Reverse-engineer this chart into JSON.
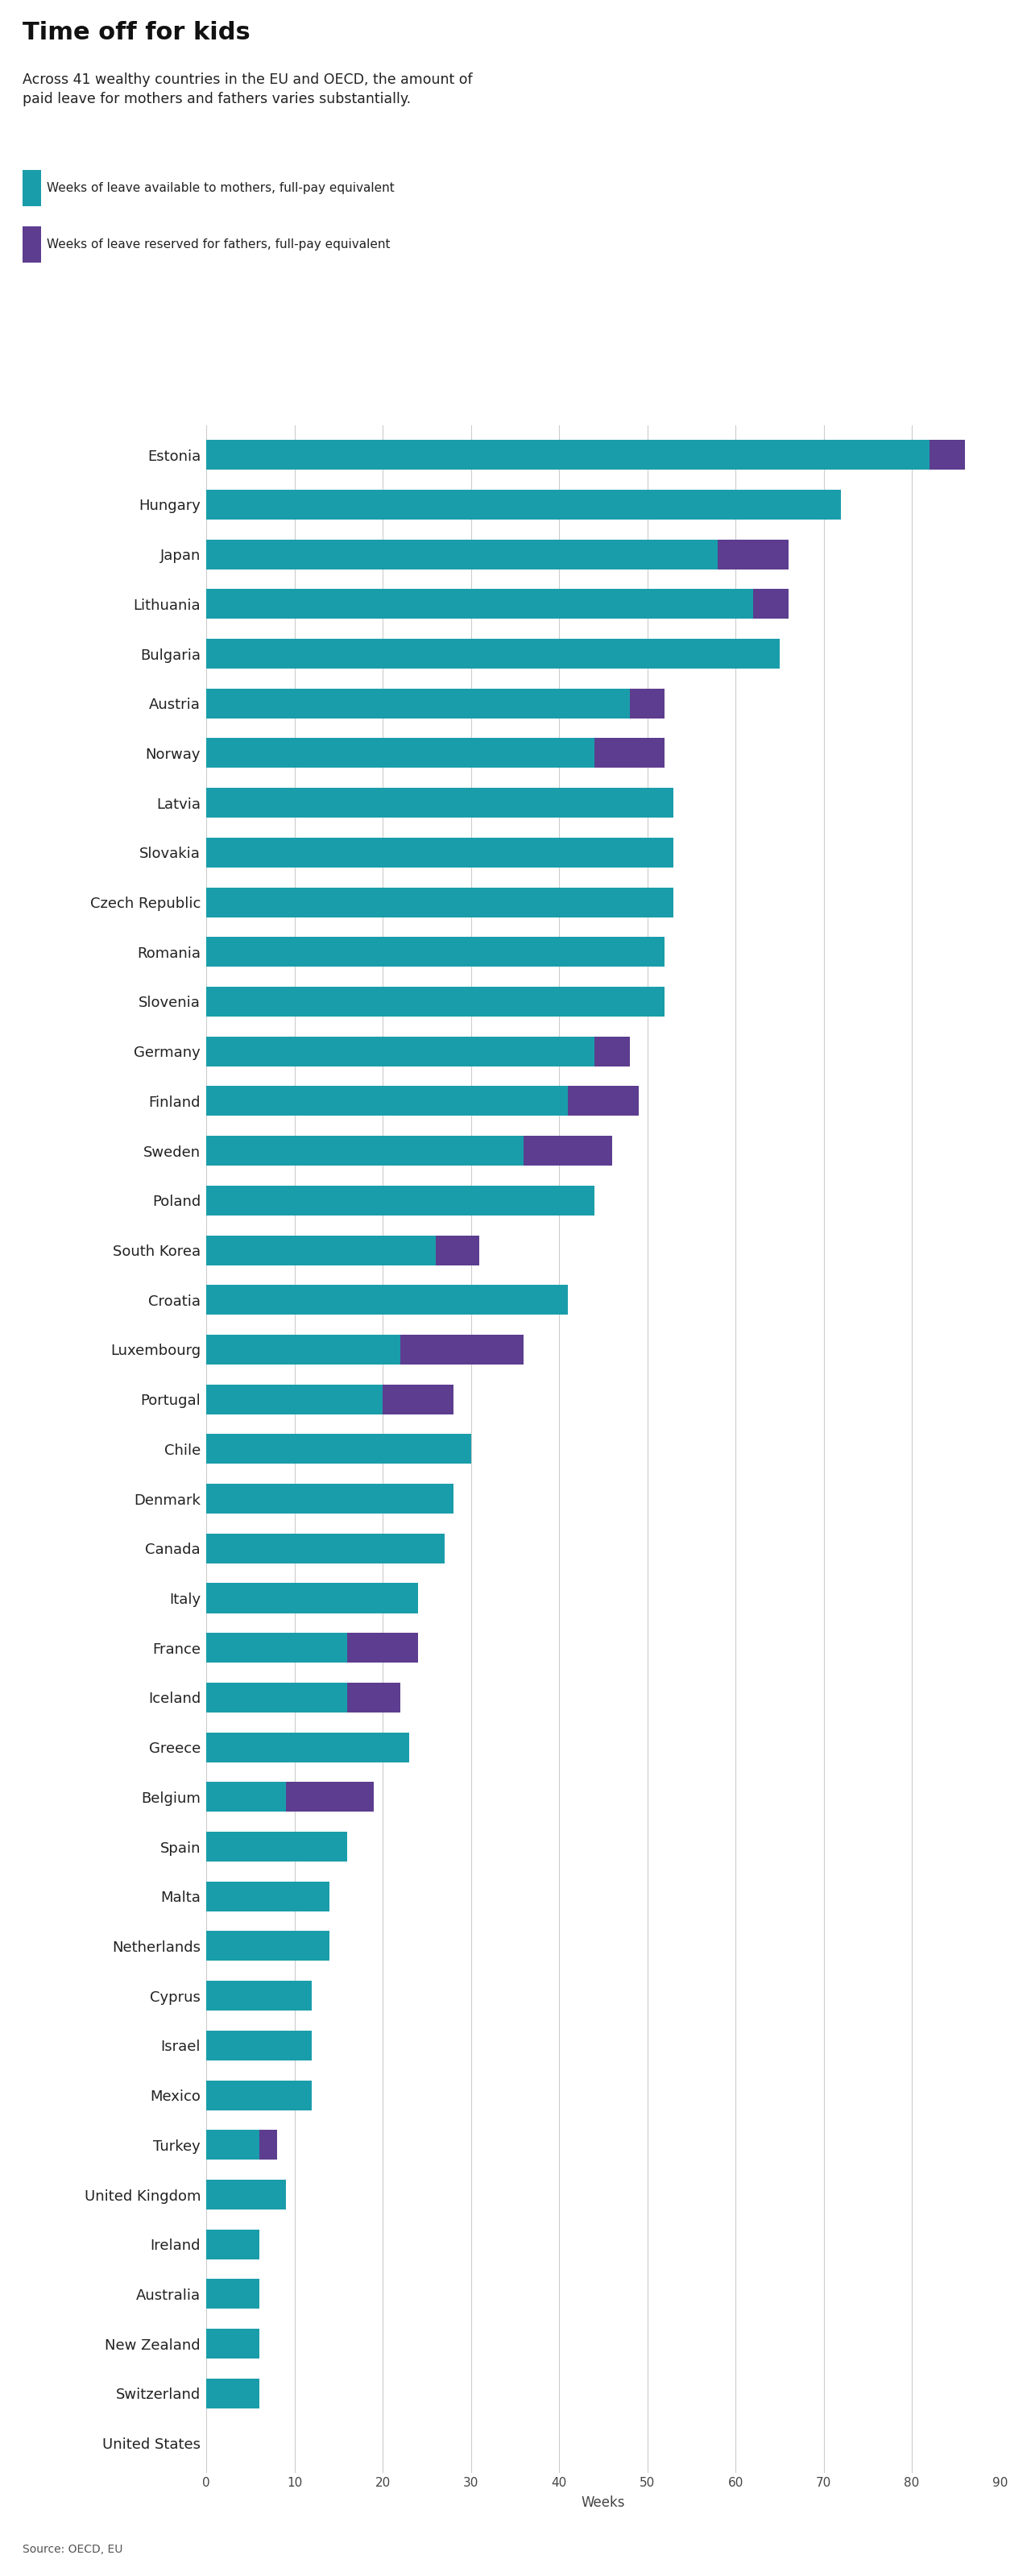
{
  "title": "Time off for kids",
  "subtitle": "Across 41 wealthy countries in the EU and OECD, the amount of\npaid leave for mothers and fathers varies substantially.",
  "legend1": "Weeks of leave available to mothers, full-pay equivalent",
  "legend2": "Weeks of leave reserved for fathers, full-pay equivalent",
  "color_mothers": "#1a9daa",
  "color_fathers": "#5c3d8f",
  "xlabel": "Weeks",
  "source": "Source: OECD, EU",
  "countries": [
    "Estonia",
    "Hungary",
    "Japan",
    "Lithuania",
    "Bulgaria",
    "Austria",
    "Norway",
    "Latvia",
    "Slovakia",
    "Czech Republic",
    "Romania",
    "Slovenia",
    "Germany",
    "Finland",
    "Sweden",
    "Poland",
    "South Korea",
    "Croatia",
    "Luxembourg",
    "Portugal",
    "Chile",
    "Denmark",
    "Canada",
    "Italy",
    "France",
    "Iceland",
    "Greece",
    "Belgium",
    "Spain",
    "Malta",
    "Netherlands",
    "Cyprus",
    "Israel",
    "Mexico",
    "Turkey",
    "United Kingdom",
    "Ireland",
    "Australia",
    "New Zealand",
    "Switzerland",
    "United States"
  ],
  "mothers": [
    82,
    72,
    58,
    62,
    65,
    48,
    44,
    53,
    53,
    53,
    52,
    52,
    44,
    41,
    36,
    44,
    26,
    41,
    22,
    20,
    30,
    28,
    27,
    24,
    16,
    16,
    23,
    9,
    16,
    14,
    14,
    12,
    12,
    12,
    6,
    9,
    6,
    6,
    6,
    6,
    0
  ],
  "fathers": [
    4,
    0,
    8,
    4,
    0,
    4,
    8,
    0,
    0,
    0,
    0,
    0,
    4,
    8,
    10,
    0,
    5,
    0,
    14,
    8,
    0,
    0,
    0,
    0,
    8,
    6,
    0,
    10,
    0,
    0,
    0,
    0,
    0,
    0,
    2,
    0,
    0,
    0,
    0,
    0,
    0
  ],
  "xlim": [
    0,
    90
  ],
  "xticks": [
    0,
    10,
    20,
    30,
    40,
    50,
    60,
    70,
    80,
    90
  ]
}
